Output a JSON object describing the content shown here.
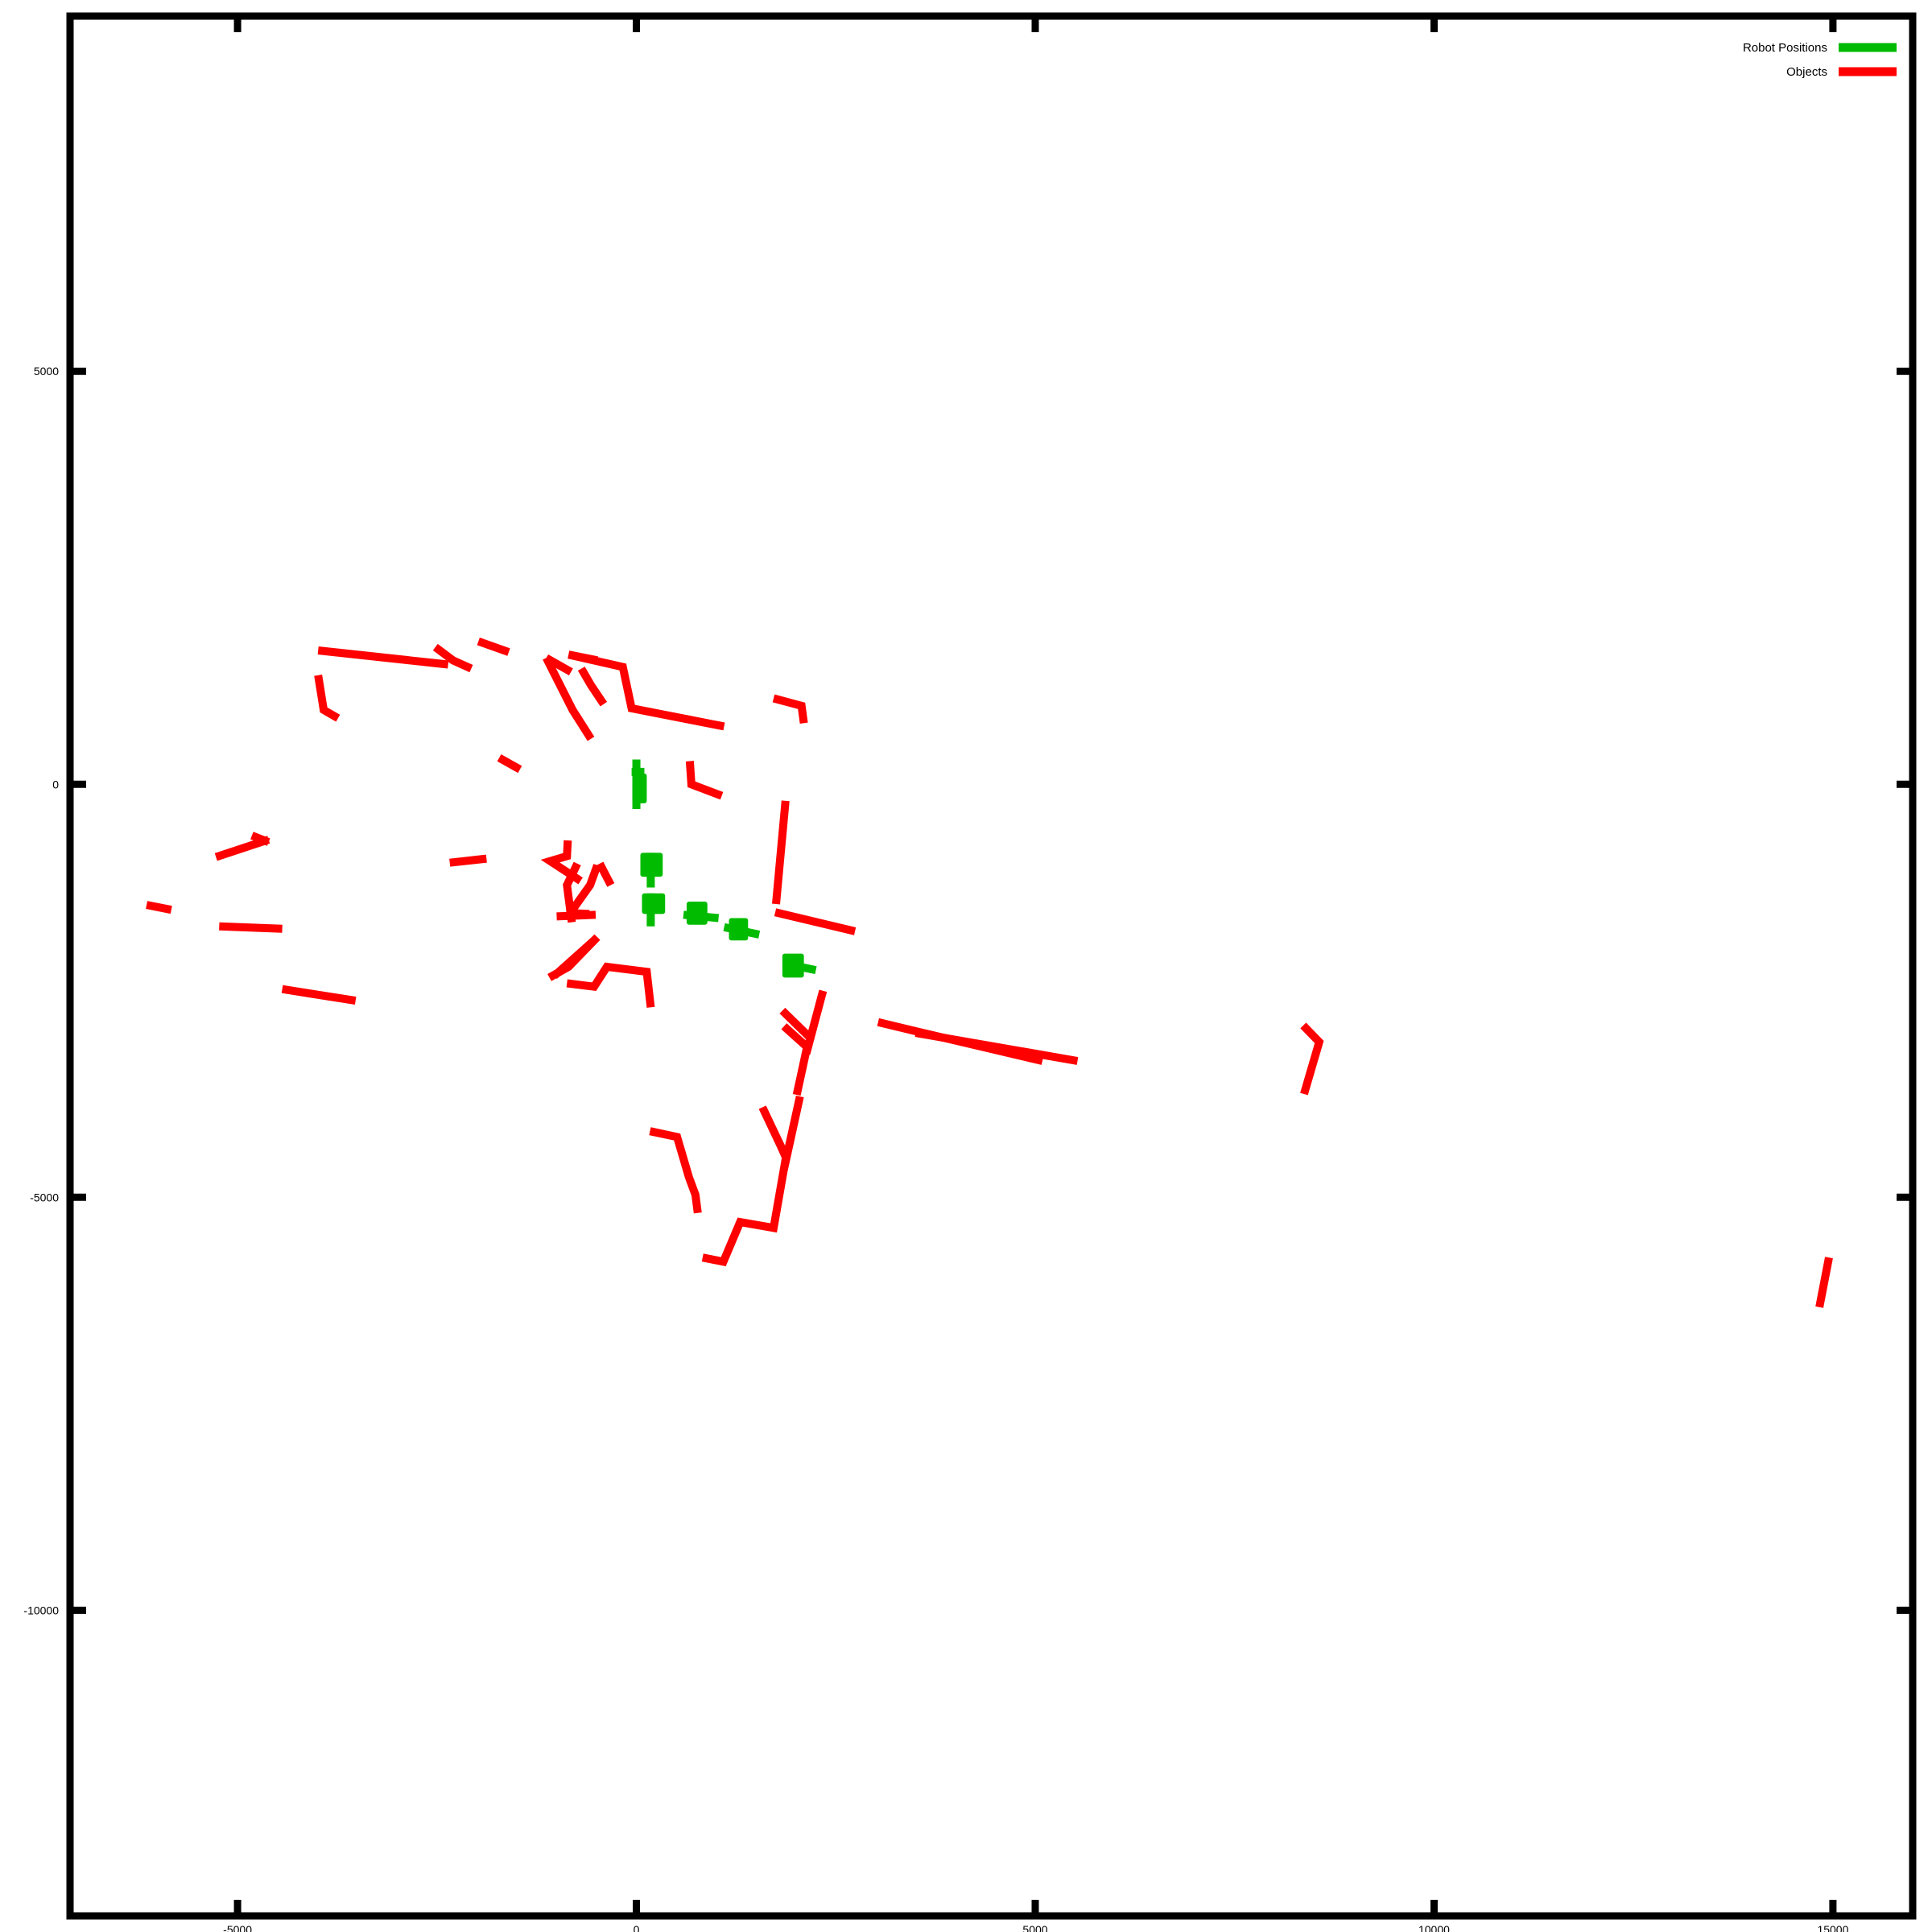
{
  "chart_data": {
    "type": "line",
    "title": "",
    "xlabel": "",
    "ylabel": "",
    "xlim": [
      -7100,
      16000
    ],
    "ylim": [
      -13700,
      9300
    ],
    "x_ticks": [
      -5000,
      0,
      5000,
      10000,
      15000
    ],
    "y_ticks": [
      5000,
      0,
      -5000,
      -10000
    ],
    "x_tick_labels": [
      "-5000",
      "0",
      "5000",
      "10000",
      "15000"
    ],
    "y_tick_labels": [
      "5000",
      "0",
      "-5000",
      "-10000"
    ],
    "grid": false,
    "legend": {
      "position": "top-right"
    },
    "colors": {
      "robot": "#00bb00",
      "objects": "#ff0000",
      "axes": "#000000"
    },
    "series": [
      {
        "name": "Robot Positions",
        "color": "#00bb00",
        "segments": [
          [
            [
              0,
              300
            ],
            [
              0,
              -300
            ]
          ],
          [
            [
              -50,
              -100
            ],
            [
              100,
              -100
            ]
          ],
          [
            [
              -60,
              150
            ],
            [
              100,
              150
            ]
          ],
          [
            [
              180,
              -830
            ],
            [
              180,
              -1250
            ]
          ],
          [
            [
              180,
              -1320
            ],
            [
              180,
              -1720
            ]
          ],
          [
            [
              590,
              -1580
            ],
            [
              1030,
              -1620
            ]
          ],
          [
            [
              1100,
              -1730
            ],
            [
              1540,
              -1820
            ]
          ],
          [
            [
              1850,
              -2170
            ],
            [
              2250,
              -2250
            ]
          ]
        ],
        "blocks": [
          [
            [
              -50,
              -230
            ],
            [
              130,
              130
            ]
          ],
          [
            [
              50,
              -1120
            ],
            [
              330,
              -830
            ]
          ],
          [
            [
              70,
              -1570
            ],
            [
              360,
              -1320
            ]
          ],
          [
            [
              630,
              -1700
            ],
            [
              890,
              -1420
            ]
          ],
          [
            [
              1160,
              -1890
            ],
            [
              1400,
              -1620
            ]
          ],
          [
            [
              1830,
              -2340
            ],
            [
              2100,
              -2050
            ]
          ]
        ]
      },
      {
        "name": "Objects",
        "color": "#ff0000",
        "polylines": [
          [
            [
              -3990,
              1620
            ],
            [
              -2360,
              1450
            ]
          ],
          [
            [
              -2520,
              1660
            ],
            [
              -2300,
              1500
            ],
            [
              -2070,
              1400
            ]
          ],
          [
            [
              -1980,
              1730
            ],
            [
              -1600,
              1600
            ]
          ],
          [
            [
              -3990,
              1320
            ],
            [
              -3920,
              900
            ],
            [
              -3740,
              800
            ]
          ],
          [
            [
              -1130,
              1530
            ],
            [
              -820,
              1360
            ]
          ],
          [
            [
              -1130,
              1530
            ],
            [
              -800,
              900
            ],
            [
              -570,
              550
            ]
          ],
          [
            [
              -850,
              1570
            ],
            [
              -490,
              1500
            ]
          ],
          [
            [
              -690,
              1400
            ],
            [
              -570,
              1200
            ],
            [
              -410,
              970
            ]
          ],
          [
            [
              -850,
              1570
            ],
            [
              -170,
              1420
            ],
            [
              -60,
              920
            ],
            [
              1100,
              700
            ]
          ],
          [
            [
              1720,
              1040
            ],
            [
              2070,
              950
            ],
            [
              2100,
              740
            ]
          ],
          [
            [
              -1720,
              320
            ],
            [
              -1460,
              180
            ]
          ],
          [
            [
              670,
              280
            ],
            [
              690,
              0
            ],
            [
              1070,
              -140
            ]
          ],
          [
            [
              1870,
              -200
            ],
            [
              1750,
              -1450
            ]
          ],
          [
            [
              1740,
              -1550
            ],
            [
              2740,
              -1780
            ]
          ],
          [
            [
              -5270,
              -880
            ],
            [
              -4610,
              -670
            ]
          ],
          [
            [
              -4820,
              -620
            ],
            [
              -4610,
              -700
            ]
          ],
          [
            [
              -2340,
              -950
            ],
            [
              -1880,
              -900
            ]
          ],
          [
            [
              -860,
              -680
            ],
            [
              -870,
              -870
            ],
            [
              -1080,
              -930
            ],
            [
              -700,
              -1170
            ]
          ],
          [
            [
              -740,
              -960
            ],
            [
              -870,
              -1220
            ],
            [
              -810,
              -1670
            ]
          ],
          [
            [
              -460,
              -960
            ],
            [
              -320,
              -1220
            ]
          ],
          [
            [
              -490,
              -980
            ],
            [
              -580,
              -1220
            ],
            [
              -830,
              -1560
            ],
            [
              -590,
              -1570
            ]
          ],
          [
            [
              -1000,
              -1600
            ],
            [
              -510,
              -1580
            ]
          ],
          [
            [
              -490,
              -1850
            ],
            [
              -850,
              -2210
            ],
            [
              -1090,
              -2340
            ]
          ],
          [
            [
              -1030,
              -2320
            ],
            [
              -520,
              -1880
            ]
          ],
          [
            [
              -870,
              -2410
            ],
            [
              -530,
              -2450
            ],
            [
              -370,
              -2210
            ],
            [
              130,
              -2270
            ],
            [
              180,
              -2700
            ]
          ],
          [
            [
              -6140,
              -1460
            ],
            [
              -5830,
              -1520
            ]
          ],
          [
            [
              -5230,
              -1720
            ],
            [
              -4440,
              -1750
            ]
          ],
          [
            [
              -4440,
              -2480
            ],
            [
              -3520,
              -2620
            ]
          ],
          [
            [
              1830,
              -2740
            ],
            [
              2180,
              -3070
            ],
            [
              2130,
              -3260
            ],
            [
              2340,
              -2500
            ]
          ],
          [
            [
              1850,
              -2930
            ],
            [
              2140,
              -3180
            ],
            [
              2010,
              -3760
            ]
          ],
          [
            [
              3030,
              -2880
            ],
            [
              3550,
              -3000
            ],
            [
              5090,
              -3350
            ]
          ],
          [
            [
              3500,
              -3010
            ],
            [
              5530,
              -3350
            ]
          ],
          [
            [
              8360,
              -2920
            ],
            [
              8560,
              -3120
            ],
            [
              8370,
              -3750
            ]
          ],
          [
            [
              170,
              -4200
            ],
            [
              510,
              -4270
            ],
            [
              660,
              -4760
            ],
            [
              740,
              -4970
            ],
            [
              770,
              -5190
            ]
          ],
          [
            [
              1580,
              -3910
            ],
            [
              1810,
              -4380
            ],
            [
              1880,
              -4530
            ],
            [
              2050,
              -3780
            ]
          ],
          [
            [
              1880,
              -4490
            ],
            [
              1720,
              -5370
            ],
            [
              1300,
              -5300
            ],
            [
              1090,
              -5780
            ],
            [
              830,
              -5730
            ]
          ],
          [
            [
              14950,
              -5730
            ],
            [
              14830,
              -6330
            ]
          ]
        ]
      }
    ]
  }
}
